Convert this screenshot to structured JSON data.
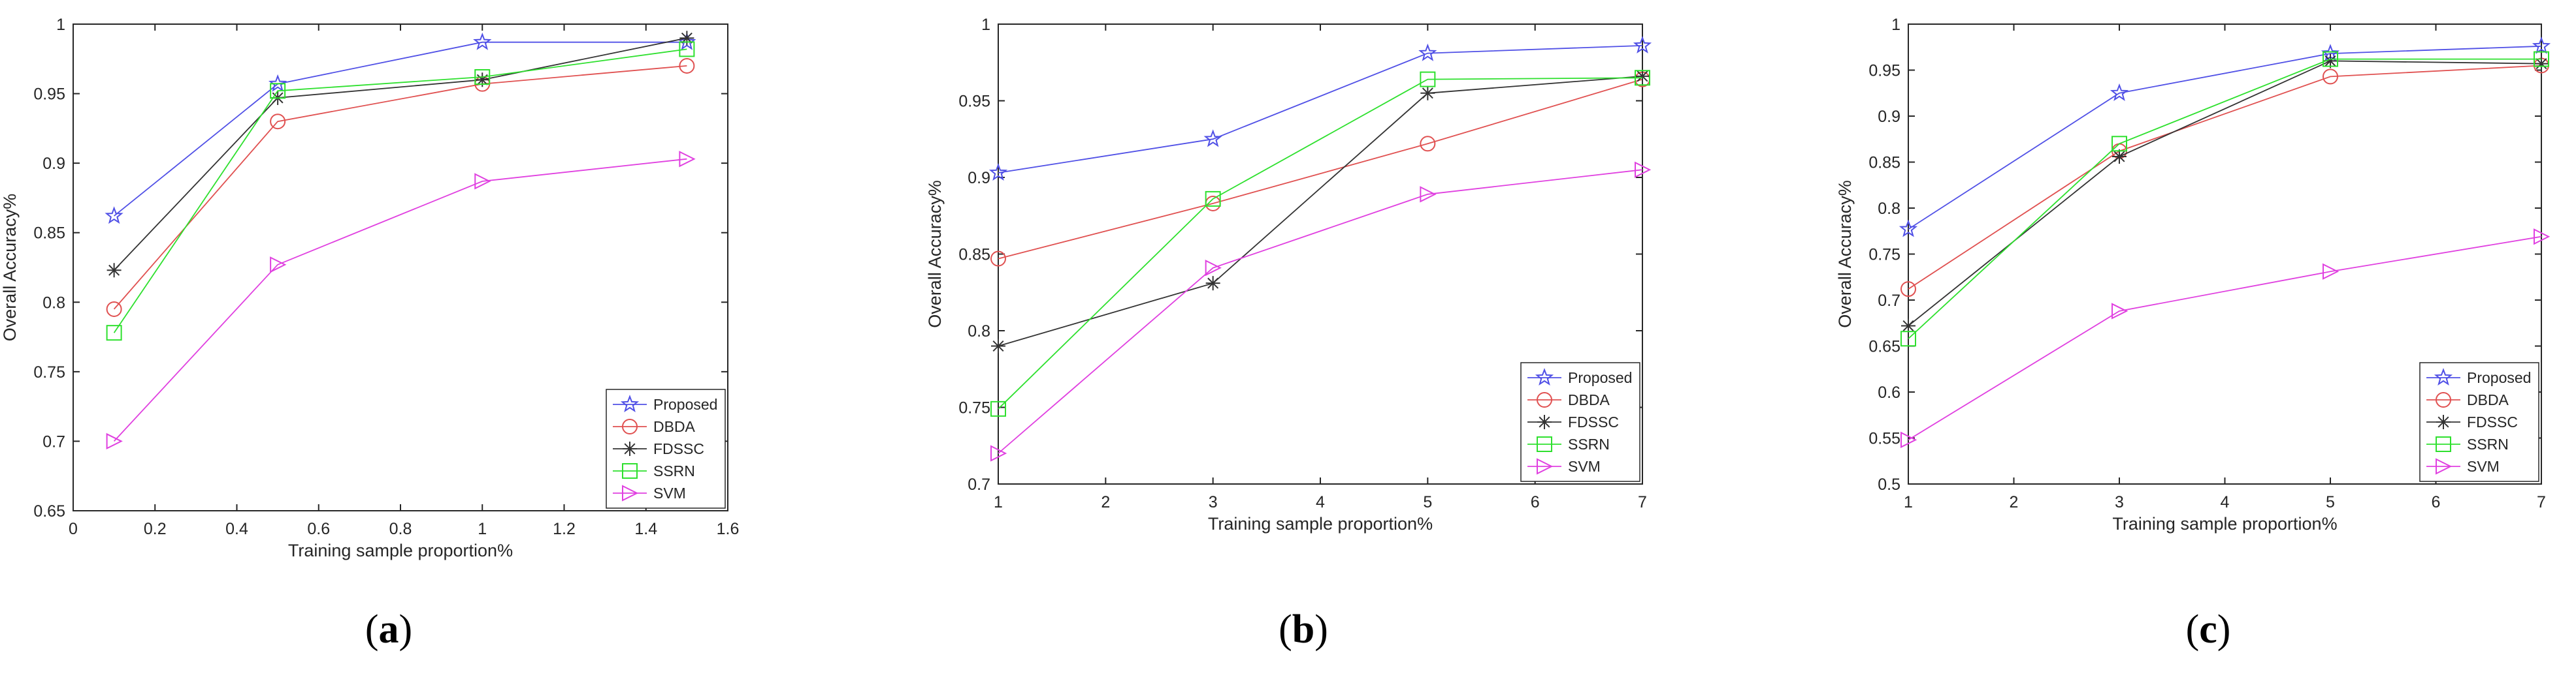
{
  "captions": [
    {
      "open": "(",
      "letter": "a",
      "close": ")"
    },
    {
      "open": "(",
      "letter": "b",
      "close": ")"
    },
    {
      "open": "(",
      "letter": "c",
      "close": ")"
    }
  ],
  "series_styles": [
    {
      "name": "Proposed",
      "color": "#5050e6",
      "marker": "star"
    },
    {
      "name": "DBDA",
      "color": "#e05050",
      "marker": "circle"
    },
    {
      "name": "FDSSC",
      "color": "#333333",
      "marker": "asterisk"
    },
    {
      "name": "SSRN",
      "color": "#2ee02e",
      "marker": "square"
    },
    {
      "name": "SVM",
      "color": "#e040e0",
      "marker": "triangle-right"
    }
  ],
  "chart_data": [
    {
      "type": "line",
      "panel": "a",
      "xlabel": "Training sample proportion%",
      "ylabel": "Overall Accuracy%",
      "xlim": [
        0,
        1.6
      ],
      "ylim": [
        0.65,
        1
      ],
      "xticks": [
        0,
        0.2,
        0.4,
        0.6,
        0.8,
        1,
        1.2,
        1.4,
        1.6
      ],
      "xtick_labels": [
        "0",
        "0.2",
        "0.4",
        "0.6",
        "0.8",
        "1",
        "1.2",
        "1.4",
        "1.6"
      ],
      "yticks": [
        0.65,
        0.7,
        0.75,
        0.8,
        0.85,
        0.9,
        0.95,
        1
      ],
      "ytick_labels": [
        "0.65",
        "0.7",
        "0.75",
        "0.8",
        "0.85",
        "0.9",
        "0.95",
        "1"
      ],
      "x": [
        0.1,
        0.5,
        1,
        1.5
      ],
      "legend_position": "bottom-right",
      "series": [
        {
          "name": "Proposed",
          "values": [
            0.862,
            0.957,
            0.987,
            0.987
          ]
        },
        {
          "name": "DBDA",
          "values": [
            0.795,
            0.93,
            0.957,
            0.97
          ]
        },
        {
          "name": "FDSSC",
          "values": [
            0.823,
            0.947,
            0.96,
            0.99
          ]
        },
        {
          "name": "SSRN",
          "values": [
            0.778,
            0.952,
            0.962,
            0.982
          ]
        },
        {
          "name": "SVM",
          "values": [
            0.7,
            0.827,
            0.887,
            0.903
          ]
        }
      ]
    },
    {
      "type": "line",
      "panel": "b",
      "xlabel": "Training sample proportion%",
      "ylabel": "Overall Accuracy%",
      "xlim": [
        1,
        7
      ],
      "ylim": [
        0.7,
        1
      ],
      "xticks": [
        1,
        2,
        3,
        4,
        5,
        6,
        7
      ],
      "xtick_labels": [
        "1",
        "2",
        "3",
        "4",
        "5",
        "6",
        "7"
      ],
      "yticks": [
        0.7,
        0.75,
        0.8,
        0.85,
        0.9,
        0.95,
        1
      ],
      "ytick_labels": [
        "0.7",
        "0.75",
        "0.8",
        "0.85",
        "0.9",
        "0.95",
        "1"
      ],
      "x": [
        1,
        3,
        5,
        7
      ],
      "legend_position": "bottom-right",
      "series": [
        {
          "name": "Proposed",
          "values": [
            0.903,
            0.925,
            0.981,
            0.986
          ]
        },
        {
          "name": "DBDA",
          "values": [
            0.847,
            0.883,
            0.922,
            0.964
          ]
        },
        {
          "name": "FDSSC",
          "values": [
            0.79,
            0.831,
            0.955,
            0.966
          ]
        },
        {
          "name": "SSRN",
          "values": [
            0.749,
            0.886,
            0.964,
            0.965
          ]
        },
        {
          "name": "SVM",
          "values": [
            0.72,
            0.841,
            0.889,
            0.905
          ]
        }
      ]
    },
    {
      "type": "line",
      "panel": "c",
      "xlabel": "Training sample proportion%",
      "ylabel": "Overall Accuracy%",
      "xlim": [
        1,
        7
      ],
      "ylim": [
        0.5,
        1
      ],
      "xticks": [
        1,
        2,
        3,
        4,
        5,
        6,
        7
      ],
      "xtick_labels": [
        "1",
        "2",
        "3",
        "4",
        "5",
        "6",
        "7"
      ],
      "yticks": [
        0.5,
        0.55,
        0.6,
        0.65,
        0.7,
        0.75,
        0.8,
        0.85,
        0.9,
        0.95,
        1
      ],
      "ytick_labels": [
        "0.5",
        "0.55",
        "0.6",
        "0.65",
        "0.7",
        "0.75",
        "0.8",
        "0.85",
        "0.9",
        "0.95",
        "1"
      ],
      "x": [
        1,
        3,
        5,
        7
      ],
      "legend_position": "bottom-right",
      "series": [
        {
          "name": "Proposed",
          "values": [
            0.777,
            0.925,
            0.968,
            0.976
          ]
        },
        {
          "name": "DBDA",
          "values": [
            0.712,
            0.862,
            0.943,
            0.955
          ]
        },
        {
          "name": "FDSSC",
          "values": [
            0.672,
            0.856,
            0.96,
            0.957
          ]
        },
        {
          "name": "SSRN",
          "values": [
            0.658,
            0.87,
            0.962,
            0.962
          ]
        },
        {
          "name": "SVM",
          "values": [
            0.548,
            0.688,
            0.731,
            0.769
          ]
        }
      ]
    }
  ]
}
